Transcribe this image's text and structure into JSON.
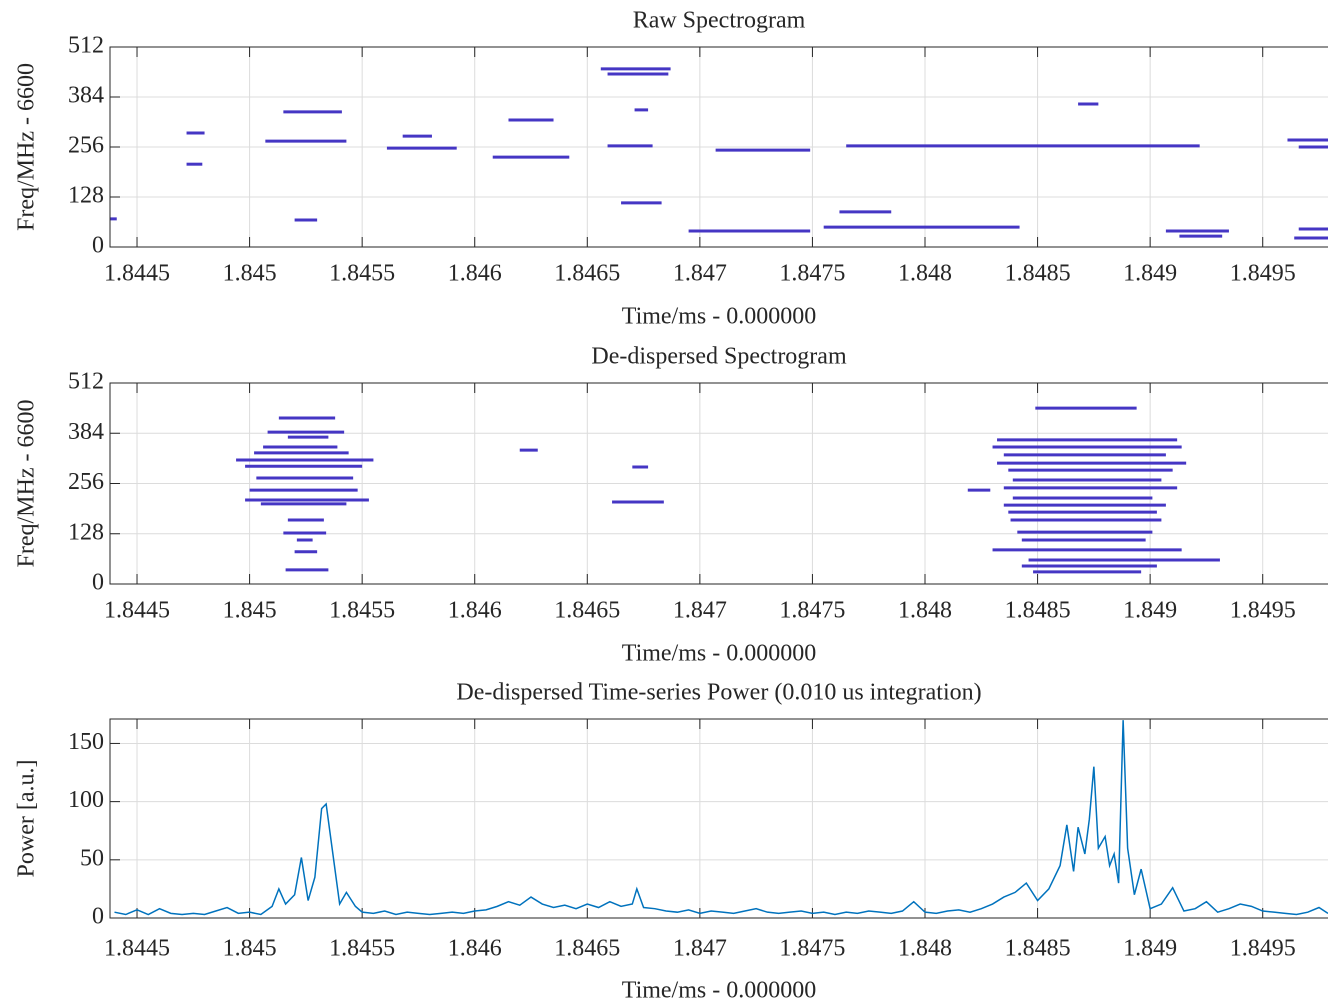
{
  "chart_data": [
    {
      "type": "spectrogram",
      "title": "Raw Spectrogram",
      "xlabel": "Time/ms - 0.000000",
      "ylabel": "Freq/MHz - 6600",
      "xlim": [
        1.84438,
        1.84979
      ],
      "ylim": [
        0,
        512
      ],
      "xticks": [
        1.8445,
        1.845,
        1.8455,
        1.846,
        1.8465,
        1.847,
        1.8475,
        1.848,
        1.8485,
        1.849,
        1.8495
      ],
      "yticks": [
        0,
        128,
        256,
        384,
        512
      ],
      "grid": true,
      "color": "#4536c4",
      "segments": [
        {
          "start": 1.84438,
          "end": 1.84441,
          "freq": 72
        },
        {
          "start": 1.84472,
          "end": 1.8448,
          "freq": 292
        },
        {
          "start": 1.84472,
          "end": 1.84479,
          "freq": 212
        },
        {
          "start": 1.84515,
          "end": 1.84541,
          "freq": 346
        },
        {
          "start": 1.84507,
          "end": 1.84543,
          "freq": 271
        },
        {
          "start": 1.8452,
          "end": 1.8453,
          "freq": 69
        },
        {
          "start": 1.84568,
          "end": 1.84581,
          "freq": 284
        },
        {
          "start": 1.84561,
          "end": 1.84592,
          "freq": 253
        },
        {
          "start": 1.84615,
          "end": 1.84635,
          "freq": 325
        },
        {
          "start": 1.84608,
          "end": 1.84642,
          "freq": 230
        },
        {
          "start": 1.84656,
          "end": 1.84687,
          "freq": 456
        },
        {
          "start": 1.84659,
          "end": 1.84686,
          "freq": 443
        },
        {
          "start": 1.84671,
          "end": 1.84677,
          "freq": 351
        },
        {
          "start": 1.84659,
          "end": 1.84679,
          "freq": 259
        },
        {
          "start": 1.84665,
          "end": 1.84683,
          "freq": 113
        },
        {
          "start": 1.84695,
          "end": 1.84749,
          "freq": 41
        },
        {
          "start": 1.84707,
          "end": 1.84749,
          "freq": 248
        },
        {
          "start": 1.84765,
          "end": 1.84922,
          "freq": 259
        },
        {
          "start": 1.84762,
          "end": 1.84785,
          "freq": 90
        },
        {
          "start": 1.84755,
          "end": 1.84842,
          "freq": 51
        },
        {
          "start": 1.84868,
          "end": 1.84877,
          "freq": 366
        },
        {
          "start": 1.84907,
          "end": 1.84935,
          "freq": 41
        },
        {
          "start": 1.84913,
          "end": 1.84932,
          "freq": 28
        },
        {
          "start": 1.84961,
          "end": 1.84979,
          "freq": 274
        },
        {
          "start": 1.84966,
          "end": 1.84979,
          "freq": 256
        },
        {
          "start": 1.84964,
          "end": 1.84979,
          "freq": 23
        },
        {
          "start": 1.84966,
          "end": 1.84979,
          "freq": 46
        }
      ]
    },
    {
      "type": "spectrogram",
      "title": "De-dispersed Spectrogram",
      "xlabel": "Time/ms - 0.000000",
      "ylabel": "Freq/MHz - 6600",
      "xlim": [
        1.84438,
        1.84979
      ],
      "ylim": [
        0,
        512
      ],
      "xticks": [
        1.8445,
        1.845,
        1.8455,
        1.846,
        1.8465,
        1.847,
        1.8475,
        1.848,
        1.8485,
        1.849,
        1.8495
      ],
      "yticks": [
        0,
        128,
        256,
        384,
        512
      ],
      "grid": true,
      "color": "#4536c4",
      "segments": [
        {
          "start": 1.84513,
          "end": 1.84538,
          "freq": 423
        },
        {
          "start": 1.84508,
          "end": 1.84542,
          "freq": 387
        },
        {
          "start": 1.84517,
          "end": 1.84535,
          "freq": 374
        },
        {
          "start": 1.84506,
          "end": 1.84539,
          "freq": 349
        },
        {
          "start": 1.84502,
          "end": 1.84544,
          "freq": 334
        },
        {
          "start": 1.84494,
          "end": 1.84555,
          "freq": 316
        },
        {
          "start": 1.84498,
          "end": 1.8455,
          "freq": 300
        },
        {
          "start": 1.84503,
          "end": 1.84546,
          "freq": 270
        },
        {
          "start": 1.845,
          "end": 1.84548,
          "freq": 239
        },
        {
          "start": 1.84498,
          "end": 1.84553,
          "freq": 214
        },
        {
          "start": 1.84505,
          "end": 1.84543,
          "freq": 204
        },
        {
          "start": 1.84517,
          "end": 1.84533,
          "freq": 163
        },
        {
          "start": 1.84515,
          "end": 1.84534,
          "freq": 130
        },
        {
          "start": 1.84521,
          "end": 1.84528,
          "freq": 112
        },
        {
          "start": 1.8452,
          "end": 1.8453,
          "freq": 82
        },
        {
          "start": 1.84516,
          "end": 1.84535,
          "freq": 36
        },
        {
          "start": 1.8462,
          "end": 1.84628,
          "freq": 341
        },
        {
          "start": 1.8467,
          "end": 1.84677,
          "freq": 298
        },
        {
          "start": 1.84661,
          "end": 1.84684,
          "freq": 209
        },
        {
          "start": 1.84849,
          "end": 1.84894,
          "freq": 448
        },
        {
          "start": 1.84832,
          "end": 1.84912,
          "freq": 367
        },
        {
          "start": 1.8483,
          "end": 1.84914,
          "freq": 349
        },
        {
          "start": 1.84835,
          "end": 1.84907,
          "freq": 329
        },
        {
          "start": 1.84832,
          "end": 1.84916,
          "freq": 308
        },
        {
          "start": 1.84837,
          "end": 1.8491,
          "freq": 290
        },
        {
          "start": 1.84839,
          "end": 1.84905,
          "freq": 265
        },
        {
          "start": 1.84835,
          "end": 1.84912,
          "freq": 245
        },
        {
          "start": 1.84819,
          "end": 1.84829,
          "freq": 239
        },
        {
          "start": 1.84839,
          "end": 1.84901,
          "freq": 219
        },
        {
          "start": 1.84835,
          "end": 1.84907,
          "freq": 201
        },
        {
          "start": 1.84837,
          "end": 1.84903,
          "freq": 183
        },
        {
          "start": 1.84838,
          "end": 1.84905,
          "freq": 163
        },
        {
          "start": 1.84841,
          "end": 1.84901,
          "freq": 132
        },
        {
          "start": 1.84843,
          "end": 1.84898,
          "freq": 112
        },
        {
          "start": 1.8483,
          "end": 1.84914,
          "freq": 87
        },
        {
          "start": 1.84846,
          "end": 1.84931,
          "freq": 61
        },
        {
          "start": 1.84843,
          "end": 1.84903,
          "freq": 46
        },
        {
          "start": 1.84848,
          "end": 1.84896,
          "freq": 31
        }
      ]
    },
    {
      "type": "line",
      "title": "De-dispersed Time-series Power (0.010 us integration)",
      "xlabel": "Time/ms - 0.000000",
      "ylabel": "Power [a.u.]",
      "xlim": [
        1.84438,
        1.84979
      ],
      "ylim": [
        0,
        171
      ],
      "xticks": [
        1.8445,
        1.845,
        1.8455,
        1.846,
        1.8465,
        1.847,
        1.8475,
        1.848,
        1.8485,
        1.849,
        1.8495
      ],
      "yticks": [
        0,
        50,
        100,
        150
      ],
      "grid": true,
      "color": "#0072bd",
      "x": [
        1.8444,
        1.84445,
        1.8445,
        1.84455,
        1.8446,
        1.84465,
        1.8447,
        1.84475,
        1.8448,
        1.84485,
        1.8449,
        1.84495,
        1.845,
        1.84505,
        1.8451,
        1.84513,
        1.84516,
        1.8452,
        1.84523,
        1.84526,
        1.84529,
        1.84532,
        1.84534,
        1.84537,
        1.8454,
        1.84543,
        1.84547,
        1.8455,
        1.84555,
        1.8456,
        1.84565,
        1.8457,
        1.84575,
        1.8458,
        1.84585,
        1.8459,
        1.84595,
        1.846,
        1.84605,
        1.8461,
        1.84615,
        1.8462,
        1.84625,
        1.8463,
        1.84635,
        1.8464,
        1.84645,
        1.8465,
        1.84655,
        1.8466,
        1.84665,
        1.8467,
        1.84672,
        1.84675,
        1.8468,
        1.84685,
        1.8469,
        1.84695,
        1.847,
        1.84705,
        1.8471,
        1.84715,
        1.8472,
        1.84725,
        1.8473,
        1.84735,
        1.8474,
        1.84745,
        1.8475,
        1.84755,
        1.8476,
        1.84765,
        1.8477,
        1.84775,
        1.8478,
        1.84785,
        1.8479,
        1.84795,
        1.848,
        1.84805,
        1.8481,
        1.84815,
        1.8482,
        1.84825,
        1.8483,
        1.84835,
        1.8484,
        1.84845,
        1.8485,
        1.84855,
        1.8486,
        1.84863,
        1.84866,
        1.84868,
        1.84871,
        1.84873,
        1.84875,
        1.84877,
        1.8488,
        1.84882,
        1.84884,
        1.84886,
        1.84888,
        1.8489,
        1.84893,
        1.84896,
        1.849,
        1.84905,
        1.8491,
        1.84915,
        1.8492,
        1.84925,
        1.8493,
        1.84935,
        1.8494,
        1.84945,
        1.8495,
        1.84955,
        1.8496,
        1.84965,
        1.8497,
        1.84975,
        1.84979
      ],
      "values": [
        5,
        3,
        7,
        3,
        8,
        4,
        3,
        4,
        3,
        6,
        9,
        4,
        5,
        3,
        10,
        25,
        12,
        20,
        52,
        15,
        35,
        94,
        98,
        55,
        12,
        22,
        10,
        5,
        4,
        6,
        3,
        5,
        4,
        3,
        4,
        5,
        4,
        6,
        7,
        10,
        14,
        11,
        18,
        12,
        9,
        11,
        8,
        12,
        9,
        14,
        10,
        12,
        25,
        9,
        8,
        6,
        5,
        7,
        4,
        6,
        5,
        4,
        6,
        8,
        5,
        4,
        5,
        6,
        4,
        5,
        3,
        5,
        4,
        6,
        5,
        4,
        6,
        14,
        5,
        4,
        6,
        7,
        5,
        8,
        12,
        18,
        22,
        30,
        15,
        25,
        45,
        80,
        40,
        78,
        55,
        85,
        130,
        60,
        70,
        45,
        55,
        30,
        170,
        60,
        20,
        42,
        8,
        12,
        26,
        6,
        8,
        14,
        5,
        8,
        12,
        10,
        6,
        5,
        4,
        3,
        5,
        9,
        4
      ]
    }
  ]
}
